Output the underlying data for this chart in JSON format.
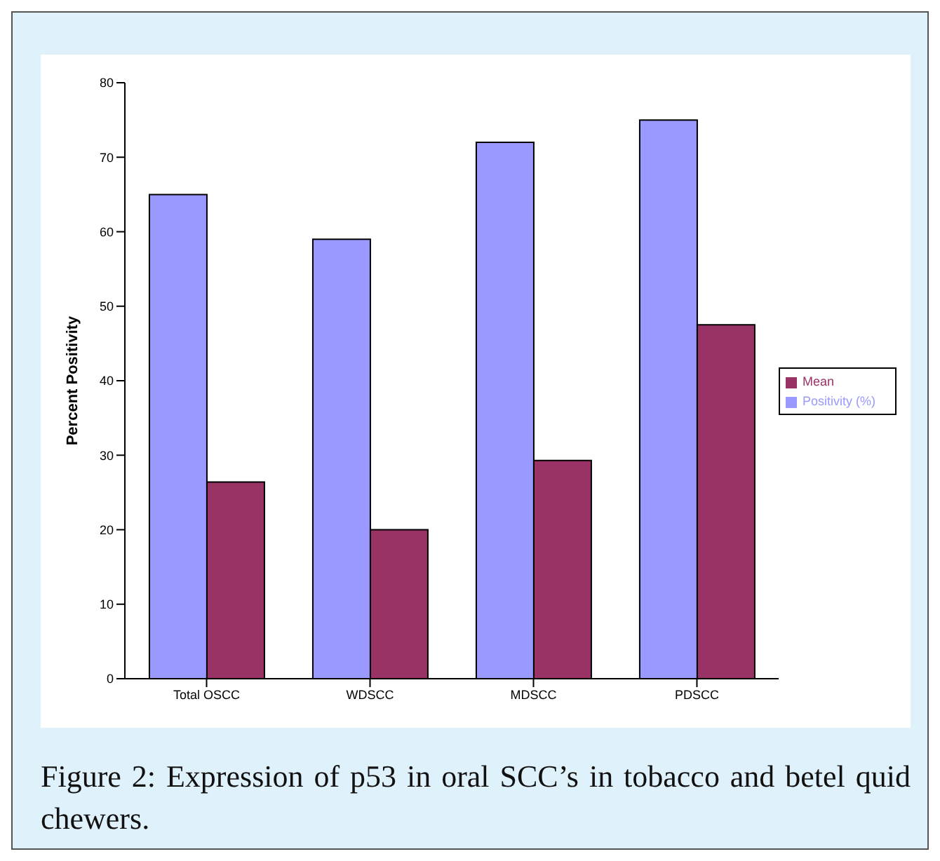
{
  "chart_data": {
    "type": "bar",
    "ylabel": "Percent Positivity",
    "categories": [
      "Total OSCC",
      "WDSCC",
      "MDSCC",
      "PDSCC"
    ],
    "series": [
      {
        "name": "Positivity (%)",
        "color": "#9999ff",
        "values": [
          65,
          59,
          72,
          75
        ]
      },
      {
        "name": "Mean",
        "color": "#993366",
        "values": [
          26.4,
          20,
          29.3,
          47.5
        ]
      }
    ],
    "ylim": [
      0,
      80
    ],
    "yticks": [
      0,
      10,
      20,
      30,
      40,
      50,
      60,
      70,
      80
    ],
    "grid": false,
    "legend": "right",
    "annotations": [
      "Figure 2: Expression of p53 in oral SCC’s in tobacco and betel quid chewers."
    ]
  }
}
